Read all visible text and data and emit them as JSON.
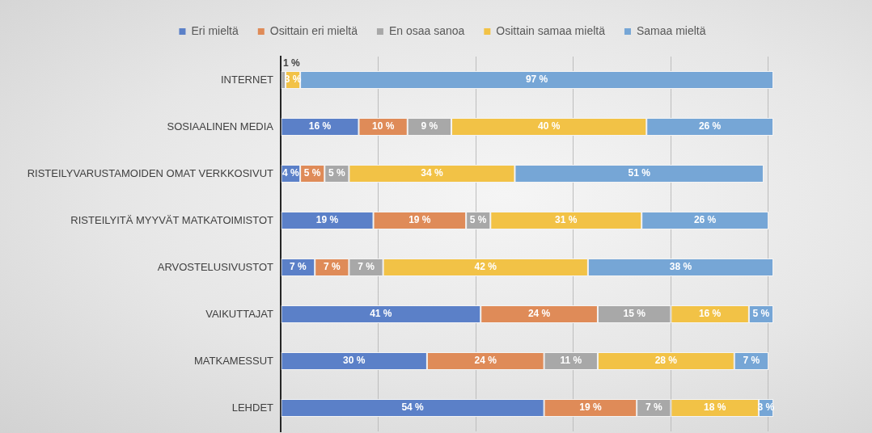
{
  "chart_data": {
    "type": "bar",
    "orientation": "horizontal",
    "stacked": true,
    "categories": [
      "INTERNET",
      "SOSIAALINEN MEDIA",
      "RISTEILYVARUSTAMOIDEN OMAT VERKKOSIVUT",
      "RISTEILYITÄ MYYVÄT MATKATOIMISTOT",
      "ARVOSTELUSIVUSTOT",
      "VAIKUTTAJAT",
      "MATKAMESSUT",
      "LEHDET"
    ],
    "series": [
      {
        "name": "Eri mieltä",
        "color": "#5b80c8",
        "values": [
          null,
          16,
          4,
          19,
          7,
          41,
          30,
          54
        ],
        "value_labels": [
          null,
          "16 %",
          "4 %",
          "19 %",
          "7 %",
          "41 %",
          "30 %",
          "54 %"
        ]
      },
      {
        "name": "Osittain eri mieltä",
        "color": "#df8b58",
        "values": [
          null,
          10,
          5,
          19,
          7,
          24,
          24,
          19
        ],
        "value_labels": [
          null,
          "10 %",
          "5 %",
          "19 %",
          "7 %",
          "24 %",
          "24 %",
          "19 %"
        ]
      },
      {
        "name": "En osaa sanoa",
        "color": "#a8a8a8",
        "values": [
          1,
          9,
          5,
          5,
          7,
          15,
          11,
          7
        ],
        "value_labels": [
          "1 %",
          "9 %",
          "5 %",
          "5 %",
          "7 %",
          "15 %",
          "11 %",
          "7 %"
        ]
      },
      {
        "name": "Osittain samaa mieltä",
        "color": "#f2c246",
        "values": [
          3,
          40,
          34,
          31,
          42,
          16,
          28,
          18
        ],
        "value_labels": [
          "3 %",
          "40 %",
          "34 %",
          "31 %",
          "42 %",
          "16 %",
          "28 %",
          "18 %"
        ]
      },
      {
        "name": "Samaa mieltä",
        "color": "#76a6d6",
        "values": [
          97,
          26,
          51,
          26,
          38,
          5,
          7,
          3
        ],
        "value_labels": [
          "97 %",
          "26 %",
          "51 %",
          "26 %",
          "38 %",
          "5 %",
          "7 %",
          "3 %"
        ]
      }
    ],
    "xlim": [
      0,
      101
    ],
    "xticks": [
      {
        "value": 0,
        "label": null
      },
      {
        "value": 20,
        "label": null
      },
      {
        "value": 40,
        "label": null
      },
      {
        "value": 60,
        "label": null
      },
      {
        "value": 80,
        "label": null
      },
      {
        "value": 100,
        "label": null
      }
    ],
    "grid": "x",
    "legend": "top",
    "tick_labels": "y"
  }
}
